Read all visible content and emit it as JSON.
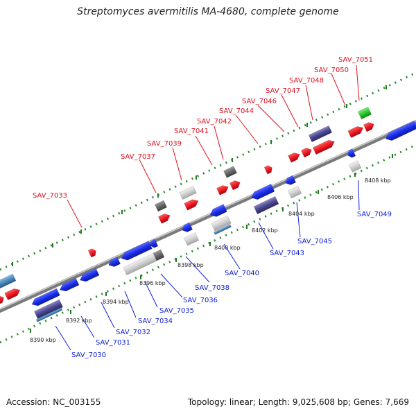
{
  "title": "Streptomyces avermitilis MA-4680, complete genome",
  "footer": {
    "accession": "Accession: NC_003155",
    "summary": "Topology: linear; Length: 9,025,608 bp; Genes: 7,669"
  },
  "colors": {
    "forward_label": "#e0101e",
    "reverse_label": "#1020d8",
    "forward_gene": "#ee1c24",
    "reverse_gene": "#1a2ee8",
    "ruler": "#2a8a2a",
    "backbone": "#8a8a8a"
  },
  "ruler_labels": [
    "8390 kbp",
    "8392 kbp",
    "8394 kbp",
    "8396 kbp",
    "8398 kbp",
    "8400 kbp",
    "8402 kbp",
    "8404 kbp",
    "8406 kbp",
    "8408 kbp"
  ],
  "forward_genes": [
    "SAV_7033",
    "SAV_7037",
    "SAV_7039",
    "SAV_7041",
    "SAV_7042",
    "SAV_7044",
    "SAV_7046",
    "SAV_7047",
    "SAV_7048",
    "SAV_7050",
    "SAV_7051"
  ],
  "reverse_genes": [
    "SAV_7030",
    "SAV_7031",
    "SAV_7032",
    "SAV_7034",
    "SAV_7035",
    "SAV_7036",
    "SAV_7038",
    "SAV_7040",
    "SAV_7043",
    "SAV_7045",
    "SAV_7049"
  ]
}
